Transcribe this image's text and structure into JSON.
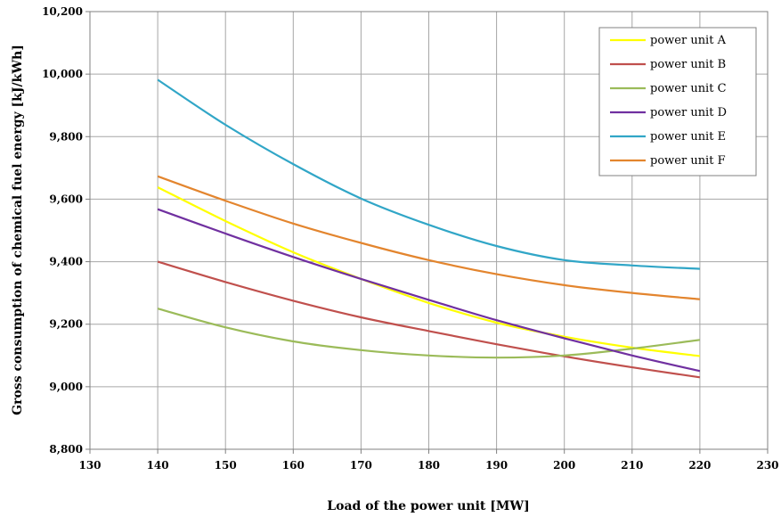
{
  "chart_data": {
    "type": "line",
    "xlabel": "Load of the power unit [MW]",
    "ylabel": "Gross consumption of chemical fuel energy  [kJ/kWh]",
    "xlim": [
      130,
      230
    ],
    "ylim": [
      8800,
      10200
    ],
    "x_ticks": [
      "130",
      "140",
      "150",
      "160",
      "170",
      "180",
      "190",
      "200",
      "210",
      "220",
      "230"
    ],
    "y_ticks": [
      "8,800",
      "9,000",
      "9,200",
      "9,400",
      "9,600",
      "9,800",
      "10,000",
      "10,200"
    ],
    "grid": true,
    "legend_position": "top-right",
    "x": [
      140,
      150,
      160,
      170,
      180,
      190,
      200,
      210,
      220
    ],
    "series": [
      {
        "name": "power unit A",
        "color": "#ffff00",
        "values": [
          9638,
          9530,
          9430,
          9345,
          9268,
          9205,
          9160,
          9125,
          9098
        ]
      },
      {
        "name": "power unit B",
        "color": "#c0504d",
        "values": [
          9400,
          9335,
          9275,
          9222,
          9178,
          9136,
          9097,
          9062,
          9030
        ]
      },
      {
        "name": "power unit C",
        "color": "#9bbb59",
        "values": [
          9250,
          9190,
          9145,
          9117,
          9100,
          9093,
          9100,
          9122,
          9150
        ]
      },
      {
        "name": "power unit D",
        "color": "#7030a0",
        "values": [
          9568,
          9490,
          9415,
          9345,
          9278,
          9213,
          9155,
          9100,
          9050
        ]
      },
      {
        "name": "power unit E",
        "color": "#31a6c7",
        "values": [
          9982,
          9838,
          9712,
          9602,
          9518,
          9450,
          9405,
          9388,
          9377
        ]
      },
      {
        "name": "power unit F",
        "color": "#e3852e",
        "values": [
          9673,
          9595,
          9522,
          9460,
          9405,
          9360,
          9325,
          9300,
          9280
        ]
      }
    ]
  }
}
